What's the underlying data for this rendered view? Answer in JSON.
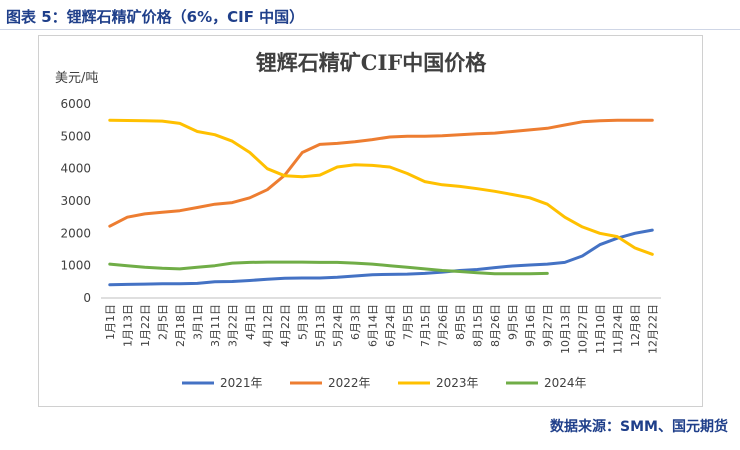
{
  "caption": "图表 5：锂辉石精矿价格（6%，CIF 中国）",
  "source": "数据来源：SMM、国元期货",
  "chart_data": {
    "type": "line",
    "title": "锂辉石精矿CIF中国价格",
    "ylabel": "美元/吨",
    "xlabel": "",
    "ylim": [
      0,
      6000
    ],
    "yticks": [
      0,
      1000,
      2000,
      3000,
      4000,
      5000,
      6000
    ],
    "grid": false,
    "legend_position": "bottom",
    "categories": [
      "1月1日",
      "1月13日",
      "1月22日",
      "2月5日",
      "2月18日",
      "3月1日",
      "3月11日",
      "3月22日",
      "4月1日",
      "4月12日",
      "4月22日",
      "5月3日",
      "5月13日",
      "5月24日",
      "6月3日",
      "6月14日",
      "6月24日",
      "7月5日",
      "7月15日",
      "7月26日",
      "8月5日",
      "8月15日",
      "8月26日",
      "9月5日",
      "9月16日",
      "9月27日",
      "10月13日",
      "10月27日",
      "11月10日",
      "11月24日",
      "12月8日",
      "12月22日"
    ],
    "series": [
      {
        "name": "2021年",
        "color": "#4472c4",
        "x": [
          0,
          1,
          2,
          3,
          4,
          5,
          6,
          7,
          8,
          9,
          10,
          11,
          12,
          13,
          14,
          15,
          16,
          17,
          18,
          19,
          20,
          21,
          22,
          23,
          24,
          25,
          26,
          27,
          28,
          29,
          30,
          31
        ],
        "values": [
          410,
          420,
          430,
          440,
          440,
          450,
          500,
          510,
          540,
          580,
          610,
          620,
          620,
          640,
          680,
          720,
          730,
          740,
          760,
          800,
          850,
          880,
          940,
          990,
          1020,
          1050,
          1100,
          1300,
          1650,
          1850,
          2000,
          2100
        ]
      },
      {
        "name": "2022年",
        "color": "#ed7d31",
        "x": [
          0,
          1,
          2,
          3,
          4,
          5,
          6,
          7,
          8,
          9,
          10,
          11,
          12,
          13,
          14,
          15,
          16,
          17,
          18,
          19,
          20,
          21,
          22,
          23,
          24,
          25,
          26,
          27,
          28,
          29,
          30,
          31
        ],
        "values": [
          2220,
          2500,
          2600,
          2650,
          2700,
          2800,
          2900,
          2950,
          3100,
          3350,
          3800,
          4500,
          4750,
          4780,
          4830,
          4900,
          4980,
          5000,
          5000,
          5020,
          5050,
          5080,
          5100,
          5150,
          5200,
          5250,
          5350,
          5450,
          5480,
          5500,
          5500,
          5500
        ]
      },
      {
        "name": "2023年",
        "color": "#ffc000",
        "x": [
          0,
          1,
          2,
          3,
          4,
          5,
          6,
          7,
          8,
          9,
          10,
          11,
          12,
          13,
          14,
          15,
          16,
          17,
          18,
          19,
          20,
          21,
          22,
          23,
          24,
          25,
          26,
          27,
          28,
          29,
          30,
          31
        ],
        "values": [
          5500,
          5490,
          5480,
          5470,
          5400,
          5150,
          5050,
          4850,
          4500,
          4000,
          3780,
          3750,
          3800,
          4050,
          4120,
          4100,
          4050,
          3850,
          3600,
          3500,
          3450,
          3380,
          3300,
          3200,
          3100,
          2900,
          2500,
          2200,
          2000,
          1900,
          1550,
          1350
        ]
      },
      {
        "name": "2024年",
        "color": "#70ad47",
        "x": [
          0,
          1,
          2,
          3,
          4,
          5,
          6,
          7,
          8,
          9,
          10,
          11,
          12,
          13,
          14,
          15,
          16,
          17,
          18,
          19,
          20,
          21,
          22,
          23,
          24,
          25
        ],
        "values": [
          1050,
          1000,
          950,
          920,
          900,
          950,
          1000,
          1080,
          1100,
          1110,
          1110,
          1110,
          1100,
          1100,
          1080,
          1050,
          1000,
          950,
          900,
          850,
          820,
          780,
          750,
          750,
          750,
          760
        ]
      }
    ]
  }
}
